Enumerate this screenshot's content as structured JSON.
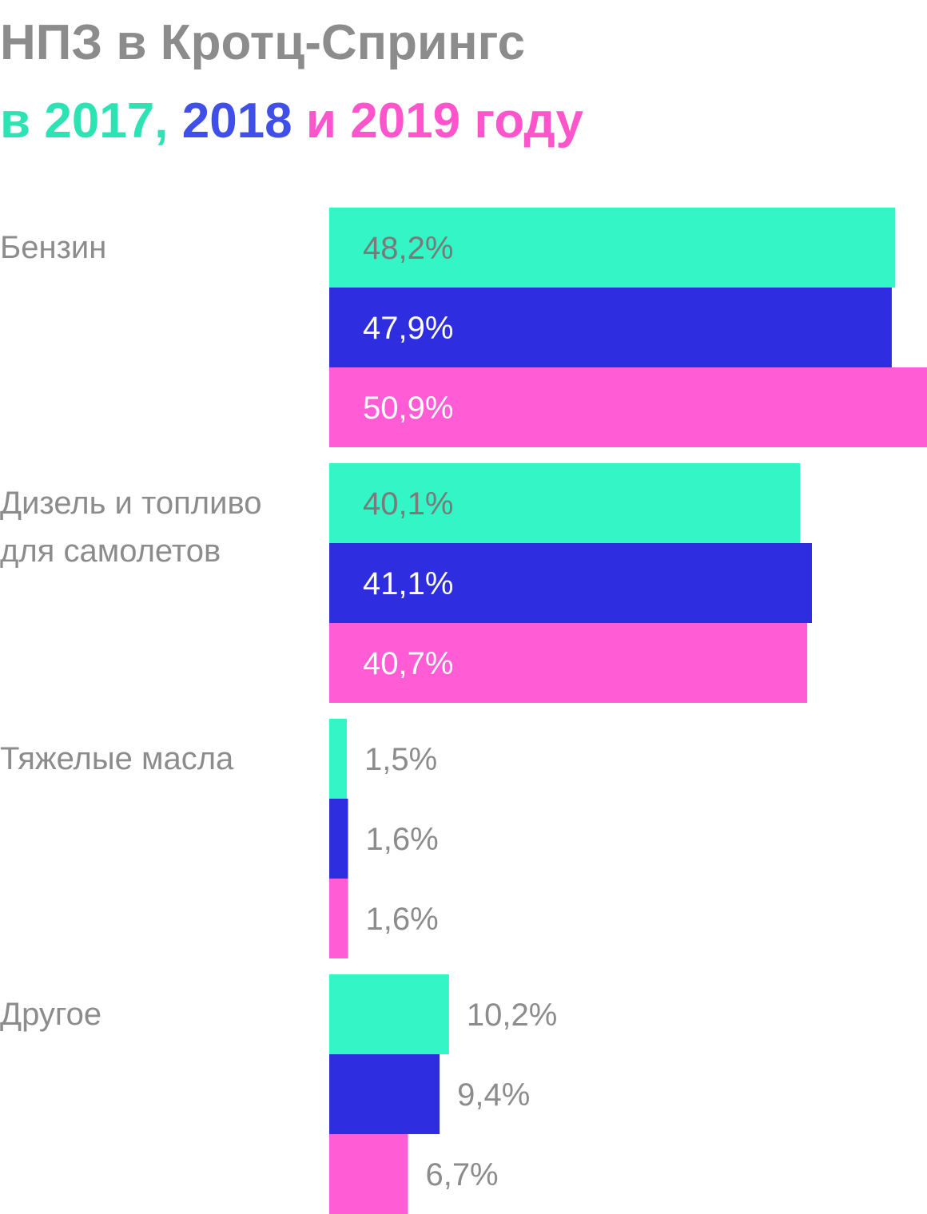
{
  "title": {
    "line1": "НПЗ в Кротц-Спрингс",
    "line2_parts": [
      {
        "text": "в 2017, ",
        "color": "#2ee3b3"
      },
      {
        "text": "2018",
        "color": "#3f4fe8"
      },
      {
        "text": " и 2019 году",
        "color": "#ff55cc"
      }
    ]
  },
  "colors": {
    "2017": "#33f5c6",
    "2018": "#2e2ee0",
    "2019": "#ff5cd6",
    "label_dark": "#7a7a7a",
    "label_light": "#ffffff",
    "text_gray": "#8c8c8c"
  },
  "chart_data": {
    "type": "bar",
    "orientation": "horizontal",
    "categories": [
      "Бензин",
      "Дизель и топливо\nдля самолетов",
      "Тяжелые масла",
      "Другое"
    ],
    "series": [
      {
        "name": "2017",
        "values": [
          48.2,
          40.1,
          1.5,
          10.2
        ],
        "labels": [
          "48,2%",
          "40,1%",
          "1,5%",
          "10,2%"
        ]
      },
      {
        "name": "2018",
        "values": [
          47.9,
          41.1,
          1.6,
          9.4
        ],
        "labels": [
          "47,9%",
          "41,1%",
          "1,6%",
          "9,4%"
        ]
      },
      {
        "name": "2019",
        "values": [
          50.9,
          40.7,
          1.6,
          6.7
        ],
        "labels": [
          "50,9%",
          "40,7%",
          "1,6%",
          "6,7%"
        ]
      }
    ],
    "xlim": [
      0,
      50.9
    ],
    "grid": false,
    "legend": "in title"
  }
}
